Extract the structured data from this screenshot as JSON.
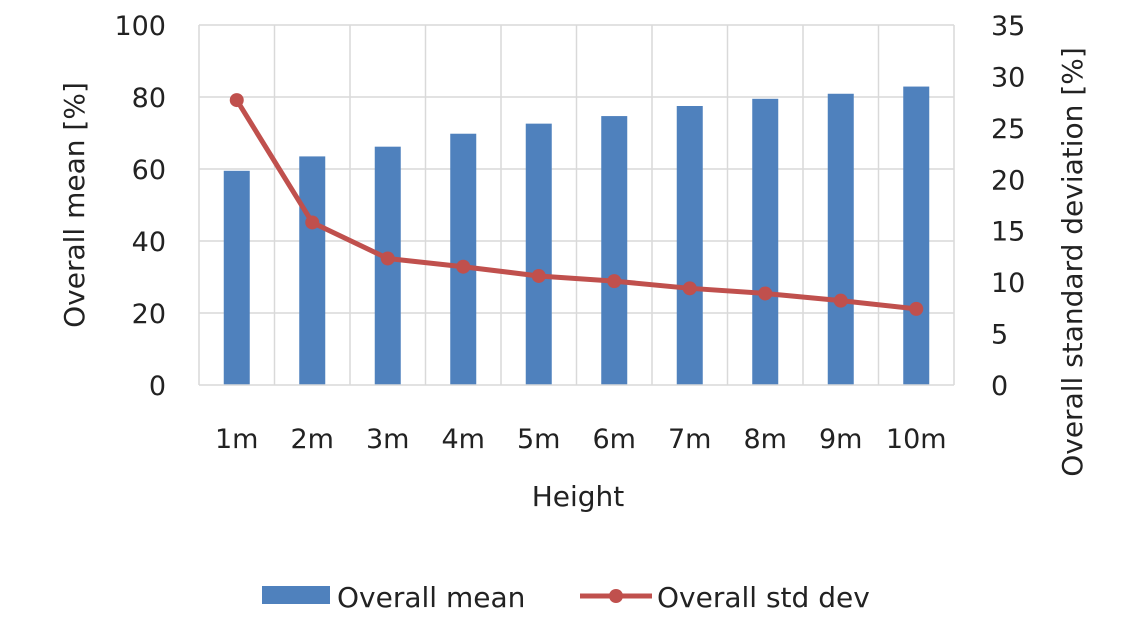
{
  "chart_data": {
    "type": "bar",
    "categories": [
      "1m",
      "2m",
      "3m",
      "4m",
      "5m",
      "6m",
      "7m",
      "8m",
      "9m",
      "10m"
    ],
    "series": [
      {
        "name": "Overall mean",
        "type": "bar",
        "axis": "left",
        "color": "#4F81BD",
        "values": [
          59.5,
          63.5,
          66.2,
          69.8,
          72.6,
          74.7,
          77.5,
          79.5,
          80.9,
          82.9
        ]
      },
      {
        "name": "Overall std dev",
        "type": "line",
        "axis": "right",
        "color": "#C0504D",
        "values": [
          27.7,
          15.8,
          12.3,
          11.5,
          10.6,
          10.1,
          9.4,
          8.9,
          8.2,
          7.4
        ]
      }
    ],
    "title": "",
    "xlabel": "Height",
    "ylabel": "Overall mean [%]",
    "y2label": "Overall standard deviation [%]",
    "ylim": [
      0,
      100
    ],
    "y2lim": [
      0,
      35
    ],
    "yticks": [
      "0",
      "20",
      "40",
      "60",
      "80",
      "100"
    ],
    "y2ticks": [
      "0",
      "5",
      "10",
      "15",
      "20",
      "25",
      "30",
      "35"
    ],
    "grid": true,
    "legend_position": "bottom"
  }
}
